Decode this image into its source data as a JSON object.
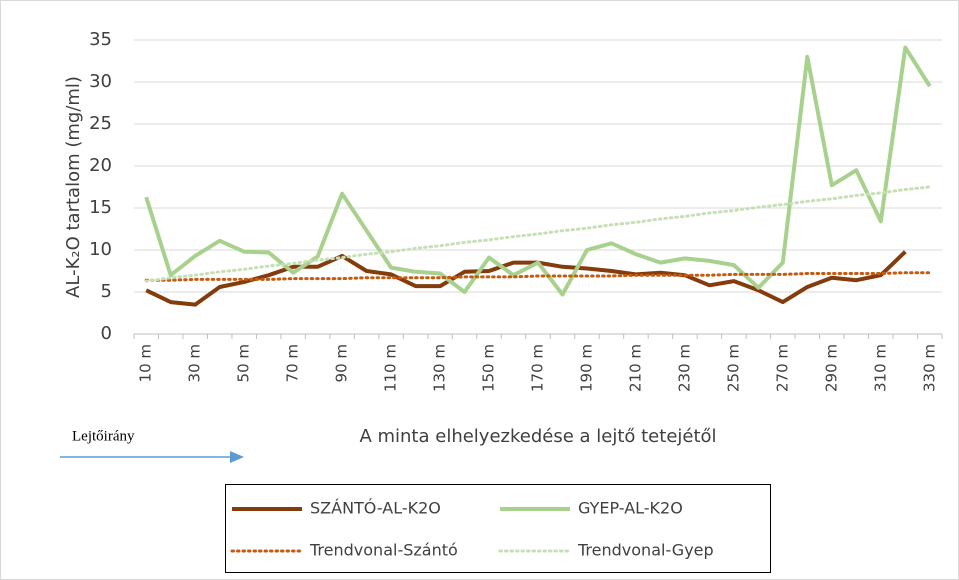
{
  "chart_data": {
    "type": "line",
    "ylabel": "AL-K₂O tartalom (mg/ml)",
    "xlabel": "A minta elhelyezkedése a lejtő tetejétől",
    "annotation": "Lejtőirány",
    "categories": [
      "10 m",
      null,
      "30 m",
      null,
      "50 m",
      null,
      "70 m",
      null,
      "90 m",
      null,
      "110 m",
      null,
      "130 m",
      null,
      "150 m",
      null,
      "170 m",
      null,
      "190 m",
      null,
      "210 m",
      null,
      "230 m",
      null,
      "250 m",
      null,
      "270 m",
      null,
      "290 m",
      null,
      "310 m",
      null,
      "330 m"
    ],
    "ylim": [
      0,
      35
    ],
    "yticks": [
      0,
      5,
      10,
      15,
      20,
      25,
      30,
      35
    ],
    "grid": true,
    "series": [
      {
        "name": "SZÁNTÓ-AL-K2O",
        "color": "#843c0c",
        "dashed": false,
        "values": [
          5.2,
          3.8,
          3.5,
          5.6,
          6.2,
          7.0,
          8.0,
          8.0,
          9.3,
          7.5,
          7.1,
          5.7,
          5.7,
          7.4,
          7.5,
          8.5,
          8.5,
          8.0,
          7.8,
          7.5,
          7.1,
          7.3,
          7.0,
          5.8,
          6.3,
          5.2,
          3.8,
          5.6,
          6.7,
          6.4,
          7.0,
          9.8,
          null
        ]
      },
      {
        "name": "GYEP-AL-K2O",
        "color": "#a9d18e",
        "dashed": false,
        "values": [
          16.3,
          7.0,
          9.3,
          11.1,
          9.8,
          9.7,
          7.3,
          9.2,
          16.7,
          12.3,
          7.9,
          7.4,
          7.2,
          5.0,
          9.1,
          7.0,
          8.5,
          4.7,
          10.0,
          10.8,
          9.5,
          8.5,
          9.0,
          8.7,
          8.2,
          5.5,
          8.5,
          33.0,
          17.7,
          19.5,
          13.4,
          34.1,
          29.5
        ]
      },
      {
        "name": "Trendvonal-Szántó",
        "color": "#c55a11",
        "dashed": true,
        "values": [
          6.4,
          6.4,
          6.5,
          6.5,
          6.5,
          6.5,
          6.6,
          6.6,
          6.6,
          6.7,
          6.7,
          6.7,
          6.7,
          6.8,
          6.8,
          6.8,
          6.9,
          6.9,
          6.9,
          6.9,
          7.0,
          7.0,
          7.0,
          7.0,
          7.1,
          7.1,
          7.1,
          7.2,
          7.2,
          7.2,
          7.2,
          7.3,
          7.3
        ]
      },
      {
        "name": "Trendvonal-Gyep",
        "color": "#c5e0b4",
        "dashed": true,
        "values": [
          6.3,
          6.7,
          7.0,
          7.4,
          7.7,
          8.1,
          8.4,
          8.8,
          9.1,
          9.5,
          9.8,
          10.2,
          10.5,
          10.9,
          11.2,
          11.6,
          11.9,
          12.3,
          12.6,
          13.0,
          13.3,
          13.7,
          14.0,
          14.4,
          14.7,
          15.1,
          15.4,
          15.8,
          16.1,
          16.5,
          16.8,
          17.2,
          17.5
        ]
      }
    ]
  }
}
